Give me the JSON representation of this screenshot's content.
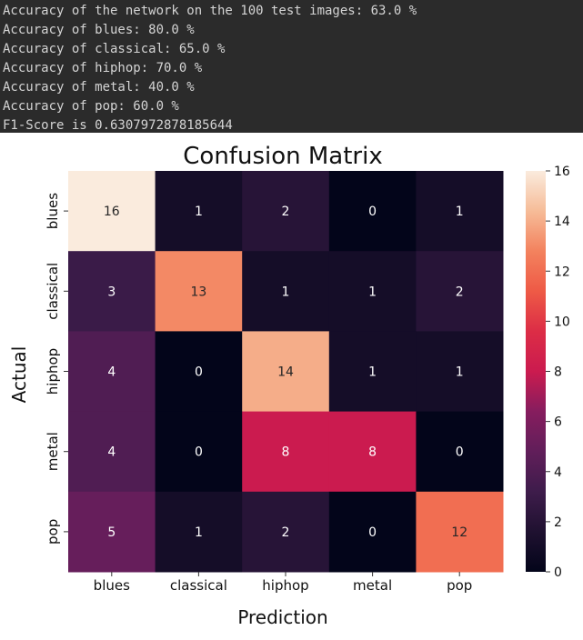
{
  "console": {
    "lines": [
      "Accuracy of the network on the 100 test images: 63.0 %",
      "Accuracy of blues: 80.0 %",
      "Accuracy of classical: 65.0 %",
      "Accuracy of hiphop: 70.0 %",
      "Accuracy of metal: 40.0 %",
      "Accuracy of pop: 60.0 %",
      "F1-Score is 0.6307972878185644"
    ]
  },
  "chart_data": {
    "type": "heatmap",
    "title": "Confusion Matrix",
    "xlabel": "Prediction",
    "ylabel": "Actual",
    "x_categories": [
      "blues",
      "classical",
      "hiphop",
      "metal",
      "pop"
    ],
    "y_categories": [
      "blues",
      "classical",
      "hiphop",
      "metal",
      "pop"
    ],
    "values": [
      [
        16,
        1,
        2,
        0,
        1
      ],
      [
        3,
        13,
        1,
        1,
        2
      ],
      [
        4,
        0,
        14,
        1,
        1
      ],
      [
        4,
        0,
        8,
        8,
        0
      ],
      [
        5,
        1,
        2,
        0,
        12
      ]
    ],
    "colorbar": {
      "range": [
        0,
        16
      ],
      "ticks": [
        0,
        2,
        4,
        6,
        8,
        10,
        12,
        14,
        16
      ]
    },
    "colormap": "rocket",
    "grid": false
  }
}
